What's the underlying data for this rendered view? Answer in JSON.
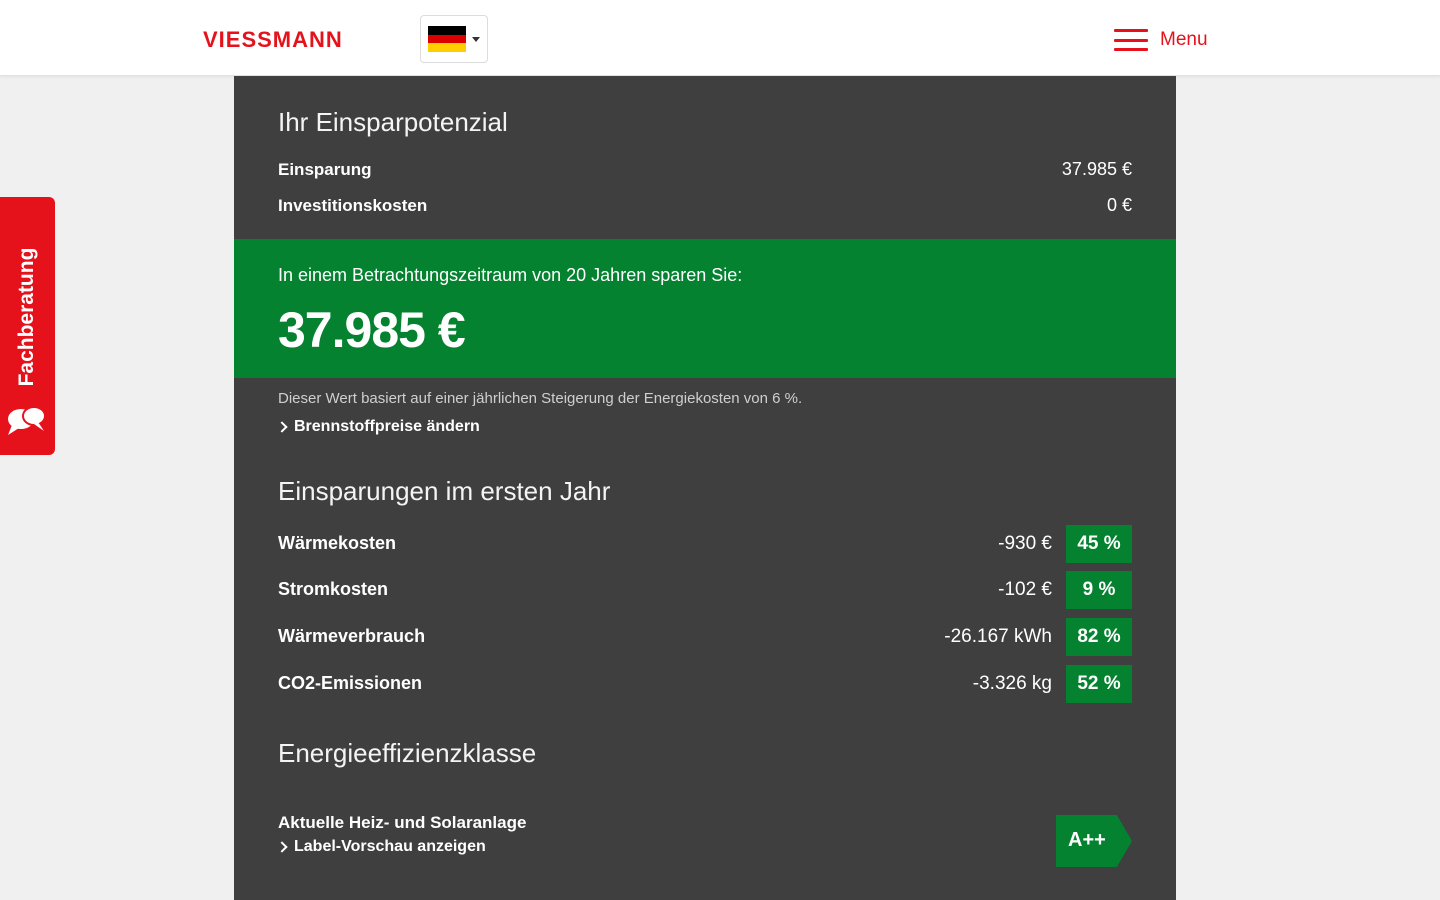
{
  "header": {
    "logo_text": "VIESSMANN",
    "menu_label": "Menu",
    "language": "de",
    "flag_colors": [
      "#000000",
      "#dd0000",
      "#ffce00"
    ]
  },
  "side_tab": {
    "label": "Fachberatung",
    "icon": "chat-bubbles-icon"
  },
  "savings": {
    "title": "Ihr Einsparpotenzial",
    "rows": [
      {
        "label": "Einsparung",
        "value": "37.985 €"
      },
      {
        "label": "Investitionskosten",
        "value": "0 €"
      }
    ],
    "period_text": "In einem Betrachtungszeitraum von 20 Jahren sparen Sie:",
    "total": "37.985 €",
    "note": "Dieser Wert basiert auf einer jährlichen Steigerung der Energiekosten von 6 %.",
    "fuel_link": "Brennstoffpreise ändern"
  },
  "first_year": {
    "title": "Einsparungen im ersten Jahr",
    "items": [
      {
        "label": "Wärmekosten",
        "value": "-930 €",
        "percent": "45 %"
      },
      {
        "label": "Stromkosten",
        "value": "-102 €",
        "percent": "9 %"
      },
      {
        "label": "Wärmeverbrauch",
        "value": "-26.167 kWh",
        "percent": "82 %"
      },
      {
        "label": "CO2-Emissionen",
        "value": "-3.326 kg",
        "percent": "52 %"
      }
    ]
  },
  "efficiency": {
    "title": "Energieeffizienzklasse",
    "system_label": "Aktuelle Heiz- und Solaranlage",
    "preview_link": "Label-Vorschau anzeigen",
    "class": "A++"
  },
  "colors": {
    "brand_red": "#e5121c",
    "panel_gray": "#3f3f3f",
    "accent_green": "#058230",
    "page_bg": "#f0f0f0"
  }
}
